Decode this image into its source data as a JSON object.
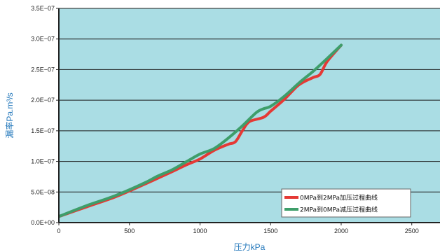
{
  "chart_data": {
    "type": "line",
    "xlabel": "压力kPa",
    "ylabel": "漏率Pa.m³/s",
    "xlim": [
      0,
      2700
    ],
    "ylim": [
      0,
      3.5e-07
    ],
    "x_ticks": [
      0,
      500,
      1000,
      1500,
      2000,
      2500
    ],
    "x_tick_labels": [
      "0",
      "500",
      "1000",
      "1500",
      "2000",
      "2500"
    ],
    "y_ticks": [
      0,
      5e-08,
      1e-07,
      1.5e-07,
      2e-07,
      2.5e-07,
      3e-07,
      3.5e-07
    ],
    "y_tick_labels": [
      "0.0E+00",
      "5.0E−08",
      "1.0E−07",
      "1.5E−07",
      "2.0E−07",
      "2.5E−07",
      "3.0E−07",
      "3.5E−07"
    ],
    "grid": "horizontal",
    "legend_position": "bottom-right",
    "background_color": "#aadde4",
    "series": [
      {
        "name": "0MPa到2MPa加压过程曲线",
        "color": "#e53935",
        "x": [
          0,
          200,
          400,
          600,
          800,
          900,
          1000,
          1100,
          1200,
          1250,
          1300,
          1350,
          1450,
          1500,
          1600,
          1700,
          1800,
          1850,
          1900,
          2000
        ],
        "y": [
          1e-08,
          2.6e-08,
          4.2e-08,
          6.2e-08,
          8.3e-08,
          9.4e-08,
          1.04e-07,
          1.18e-07,
          1.28e-07,
          1.32e-07,
          1.5e-07,
          1.65e-07,
          1.72e-07,
          1.82e-07,
          2.02e-07,
          2.25e-07,
          2.37e-07,
          2.42e-07,
          2.63e-07,
          2.9e-07
        ]
      },
      {
        "name": "2MPa到0MPa减压过程曲线",
        "color": "#3e9e6a",
        "x": [
          0,
          200,
          400,
          600,
          700,
          800,
          900,
          1000,
          1100,
          1200,
          1300,
          1400,
          1450,
          1500,
          1600,
          1700,
          1800,
          1900,
          2000
        ],
        "y": [
          1e-08,
          2.8e-08,
          4.4e-08,
          6.4e-08,
          7.6e-08,
          8.6e-08,
          9.9e-08,
          1.12e-07,
          1.21e-07,
          1.38e-07,
          1.58e-07,
          1.8e-07,
          1.86e-07,
          1.9e-07,
          2.07e-07,
          2.28e-07,
          2.47e-07,
          2.68e-07,
          2.9e-07
        ]
      }
    ]
  }
}
